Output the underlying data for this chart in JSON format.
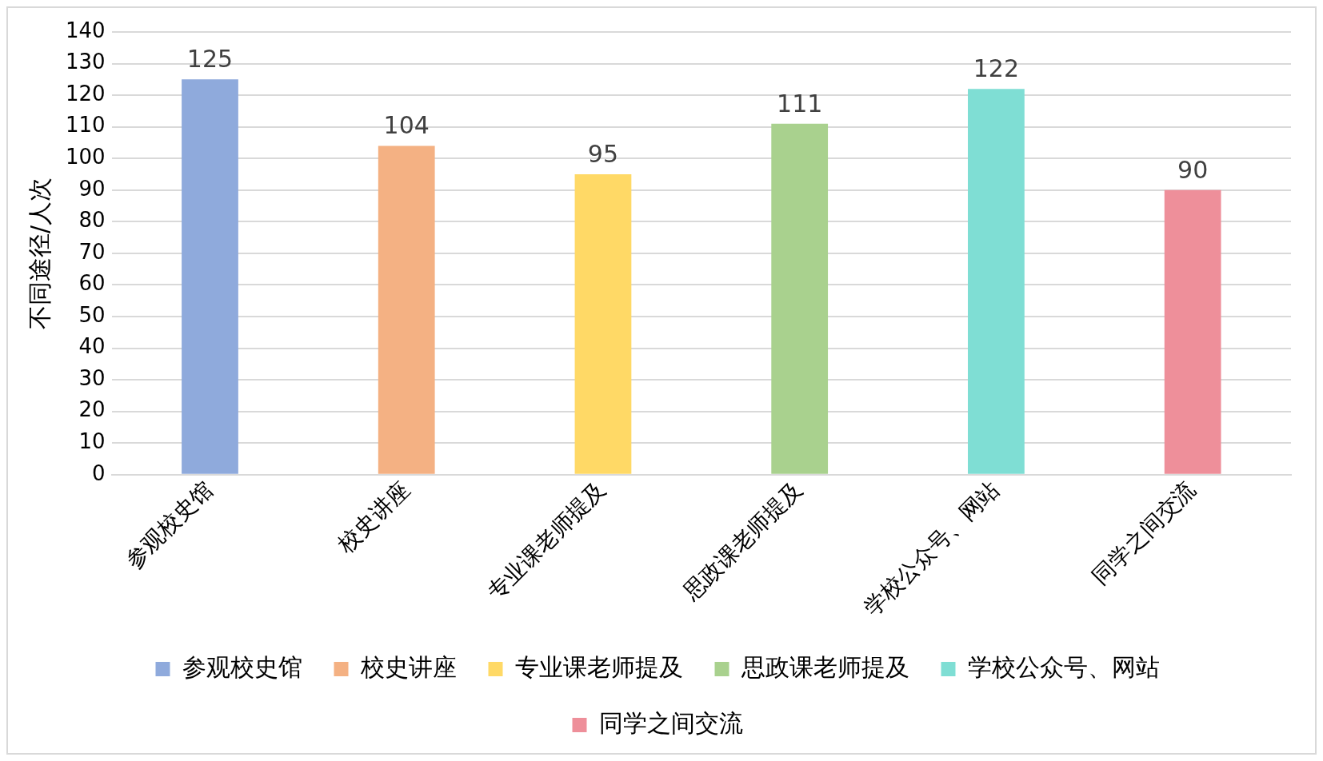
{
  "chart_data": {
    "type": "bar",
    "ylabel": "不同途径/人次",
    "categories": [
      "参观校史馆",
      "校史讲座",
      "专业课老师提及",
      "思政课老师提及",
      "学校公众号、网站",
      "同学之间交流"
    ],
    "series": [
      {
        "name": "参观校史馆",
        "color": "#8faadc",
        "values": [
          125,
          null,
          null,
          null,
          null,
          null
        ]
      },
      {
        "name": "校史讲座",
        "color": "#f4b183",
        "values": [
          null,
          104,
          null,
          null,
          null,
          null
        ]
      },
      {
        "name": "专业课老师提及",
        "color": "#ffd966",
        "values": [
          null,
          null,
          95,
          null,
          null,
          null
        ]
      },
      {
        "name": "思政课老师提及",
        "color": "#a9d18e",
        "values": [
          null,
          null,
          null,
          111,
          null,
          null
        ]
      },
      {
        "name": "学校公众号、网站",
        "color": "#7fded4",
        "values": [
          null,
          null,
          null,
          null,
          122,
          null
        ]
      },
      {
        "name": "同学之间交流",
        "color": "#ee8f9a",
        "values": [
          null,
          null,
          null,
          null,
          null,
          90
        ]
      }
    ],
    "ylim": [
      0,
      140
    ],
    "yticks": [
      0,
      10,
      20,
      30,
      40,
      50,
      60,
      70,
      80,
      90,
      100,
      110,
      120,
      130,
      140
    ],
    "grid": "y",
    "legend": "bottom",
    "data_labels": true
  }
}
